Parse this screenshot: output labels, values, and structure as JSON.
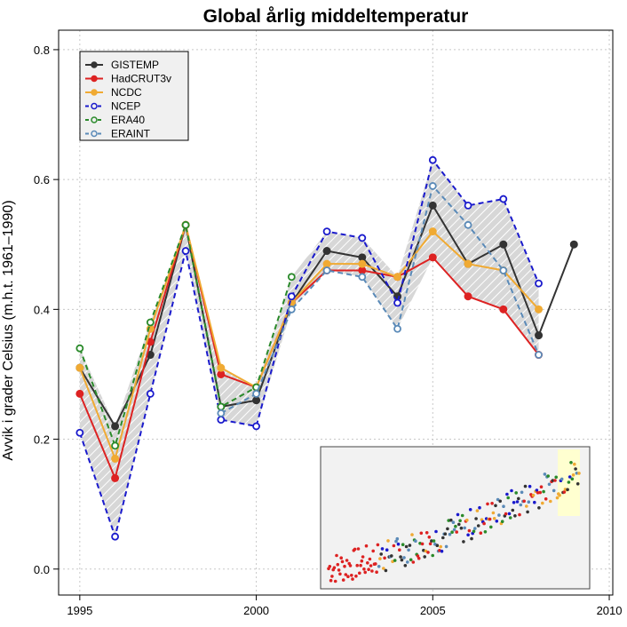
{
  "chart_data": {
    "type": "line",
    "title": "Global årlig middeltemperatur",
    "xlabel": "",
    "ylabel": "Avvik i grader Celsius (m.h.t. 1961–1990)",
    "xlim": [
      1994.4,
      2010.1
    ],
    "ylim": [
      -0.04,
      0.83
    ],
    "x_ticks": [
      "1995",
      "2000",
      "2005",
      "2010"
    ],
    "y_ticks": [
      "0.0",
      "0.2",
      "0.4",
      "0.6",
      "0.8"
    ],
    "grid": true,
    "legend_position": "top-left",
    "series": [
      {
        "name": "GISTEMP",
        "color": "#333333",
        "dash": "solid",
        "marker": "filled",
        "x": [
          1995,
          1996,
          1997,
          1998,
          1999,
          2000,
          2001,
          2002,
          2003,
          2004,
          2005,
          2006,
          2007,
          2008,
          2009
        ],
        "y": [
          0.31,
          0.22,
          0.33,
          0.53,
          0.25,
          0.26,
          0.41,
          0.49,
          0.48,
          0.42,
          0.56,
          0.47,
          0.5,
          0.36,
          0.5
        ]
      },
      {
        "name": "HadCRUT3v",
        "color": "#dd2222",
        "dash": "solid",
        "marker": "filled",
        "x": [
          1995,
          1996,
          1997,
          1998,
          1999,
          2000,
          2001,
          2002,
          2003,
          2004,
          2005,
          2006,
          2007,
          2008
        ],
        "y": [
          0.27,
          0.14,
          0.35,
          0.53,
          0.3,
          0.28,
          0.41,
          0.46,
          0.46,
          0.45,
          0.48,
          0.42,
          0.4,
          0.33
        ]
      },
      {
        "name": "NCDC",
        "color": "#f0aa33",
        "dash": "solid",
        "marker": "filled",
        "x": [
          1995,
          1996,
          1997,
          1998,
          1999,
          2000,
          2001,
          2002,
          2003,
          2004,
          2005,
          2006,
          2007,
          2008
        ],
        "y": [
          0.31,
          0.17,
          0.37,
          0.53,
          0.31,
          0.28,
          0.41,
          0.47,
          0.47,
          0.45,
          0.52,
          0.47,
          0.46,
          0.4
        ]
      },
      {
        "name": "NCEP",
        "color": "#1a1acc",
        "dash": "dashed",
        "marker": "open",
        "x": [
          1995,
          1996,
          1997,
          1998,
          1999,
          2000,
          2001,
          2002,
          2003,
          2004,
          2005,
          2006,
          2007,
          2008
        ],
        "y": [
          0.21,
          0.05,
          0.27,
          0.49,
          0.23,
          0.22,
          0.42,
          0.52,
          0.51,
          0.41,
          0.63,
          0.56,
          0.57,
          0.44
        ]
      },
      {
        "name": "ERA40",
        "color": "#2a8a2a",
        "dash": "dashed",
        "marker": "open",
        "x": [
          1995,
          1996,
          1997,
          1998,
          1999,
          2000,
          2001
        ],
        "y": [
          0.34,
          0.19,
          0.38,
          0.53,
          0.25,
          0.28,
          0.45
        ]
      },
      {
        "name": "ERAINT",
        "color": "#5a8ab8",
        "dash": "dashed",
        "marker": "open",
        "x": [
          1999,
          2000,
          2001,
          2002,
          2003,
          2004,
          2005,
          2006,
          2007,
          2008
        ],
        "y": [
          0.24,
          0.27,
          0.4,
          0.46,
          0.45,
          0.37,
          0.59,
          0.53,
          0.46,
          0.33
        ]
      }
    ]
  }
}
